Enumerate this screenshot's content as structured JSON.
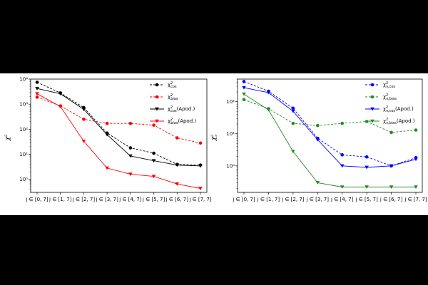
{
  "chart_data": [
    {
      "type": "line",
      "ylabel": "χ²",
      "yscale": "log",
      "ylim": [
        0.3,
        10000
      ],
      "yticks": [
        {
          "v": 1,
          "t": "10⁰"
        },
        {
          "v": 10,
          "t": "10¹"
        },
        {
          "v": 100,
          "t": "10²"
        },
        {
          "v": 1000,
          "t": "10³"
        },
        {
          "v": 10000,
          "t": "10⁴"
        }
      ],
      "categories": [
        "j ∈ [0, 7]",
        "j ∈ [1, 7]",
        "j ∈ [2, 7]",
        "j ∈ [3, 7]",
        "j ∈ [4, 7]",
        "j ∈ [5, 7]",
        "j ∈ [6, 7]",
        "j ∈ [7, 7]"
      ],
      "legend_position": "top-right",
      "series": [
        {
          "name": "χ²cos",
          "color": "#000000",
          "dash": true,
          "marker": "circle",
          "values": [
            7500,
            2800,
            730,
            70,
            18,
            11,
            3.9,
            3.7
          ]
        },
        {
          "name": "χ²bias",
          "color": "#ff0000",
          "dash": true,
          "marker": "circle",
          "values": [
            1900,
            850,
            250,
            170,
            170,
            145,
            45,
            28
          ]
        },
        {
          "name": "χ²cos(Apod.)",
          "color": "#000000",
          "dash": false,
          "marker": "triangle",
          "values": [
            4200,
            2600,
            620,
            60,
            8.5,
            5.5,
            3.7,
            3.4
          ]
        },
        {
          "name": "χ²bias(Apod.)",
          "color": "#ff0000",
          "dash": false,
          "marker": "triangle",
          "values": [
            2600,
            800,
            33,
            2.8,
            1.6,
            1.3,
            0.65,
            0.43
          ]
        }
      ]
    },
    {
      "type": "line",
      "ylabel": "χ²ν",
      "yscale": "log",
      "ylim": [
        0.15,
        500
      ],
      "yticks": [
        {
          "v": 1,
          "t": "10⁰"
        },
        {
          "v": 10,
          "t": "10¹"
        },
        {
          "v": 100,
          "t": "10²"
        }
      ],
      "categories": [
        "j ∈ [0, 7]",
        "j ∈ [1, 7]",
        "j ∈ [2, 7]",
        "j ∈ [3, 7]",
        "j ∈ [4, 7]",
        "j ∈ [5, 7]",
        "j ∈ [6, 7]",
        "j ∈ [7, 7]"
      ],
      "legend_position": "top-right",
      "series": [
        {
          "name": "χ²ν,cos",
          "color": "#0000ff",
          "dash": true,
          "marker": "circle",
          "values": [
            420,
            210,
            62,
            7.2,
            2.2,
            1.9,
            1.0,
            1.8
          ]
        },
        {
          "name": "χ²ν,bias",
          "color": "#228b22",
          "dash": true,
          "marker": "circle",
          "values": [
            115,
            60,
            21,
            18,
            21,
            24,
            11,
            13
          ]
        },
        {
          "name": "χ²ν,cos(Apod.)",
          "color": "#0000ff",
          "dash": false,
          "marker": "triangle",
          "values": [
            270,
            190,
            50,
            6.5,
            1.0,
            0.9,
            1.0,
            1.6
          ]
        },
        {
          "name": "χ²ν,bias(Apod.)",
          "color": "#228b22",
          "dash": false,
          "marker": "triangle",
          "values": [
            170,
            55,
            2.8,
            0.3,
            0.22,
            0.22,
            0.22,
            0.22
          ]
        }
      ]
    }
  ]
}
